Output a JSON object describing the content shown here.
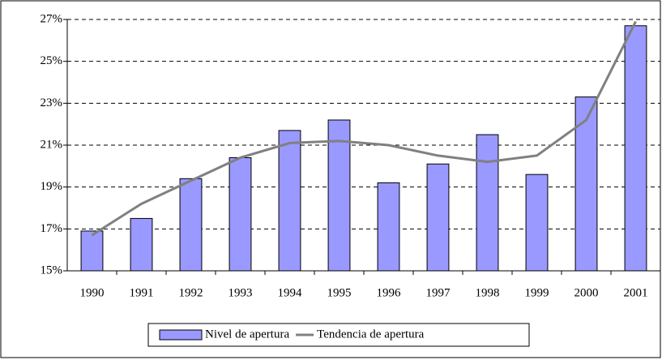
{
  "chart_data": {
    "type": "bar",
    "categories": [
      "1990",
      "1991",
      "1992",
      "1993",
      "1994",
      "1995",
      "1996",
      "1997",
      "1998",
      "1999",
      "2000",
      "2001"
    ],
    "series": [
      {
        "name": "Nivel de apertura",
        "color": "#9999ff",
        "values": [
          16.9,
          17.5,
          19.4,
          20.4,
          21.7,
          22.2,
          19.2,
          20.1,
          21.5,
          19.6,
          23.3,
          26.7
        ]
      },
      {
        "name": "Tendencia de apertura",
        "type": "line",
        "color": "#808080",
        "values": [
          16.7,
          18.2,
          19.3,
          20.4,
          21.1,
          21.2,
          21.0,
          20.5,
          20.2,
          20.5,
          22.2,
          26.9
        ]
      }
    ],
    "ylim": [
      15,
      27
    ],
    "yticks": [
      {
        "value": 15,
        "label": "15%"
      },
      {
        "value": 17,
        "label": "17%"
      },
      {
        "value": 19,
        "label": "19%"
      },
      {
        "value": 21,
        "label": "21%"
      },
      {
        "value": 23,
        "label": "23%"
      },
      {
        "value": 25,
        "label": "25%"
      },
      {
        "value": 27,
        "label": "27%"
      }
    ],
    "grid": true,
    "legend": "bottom"
  }
}
